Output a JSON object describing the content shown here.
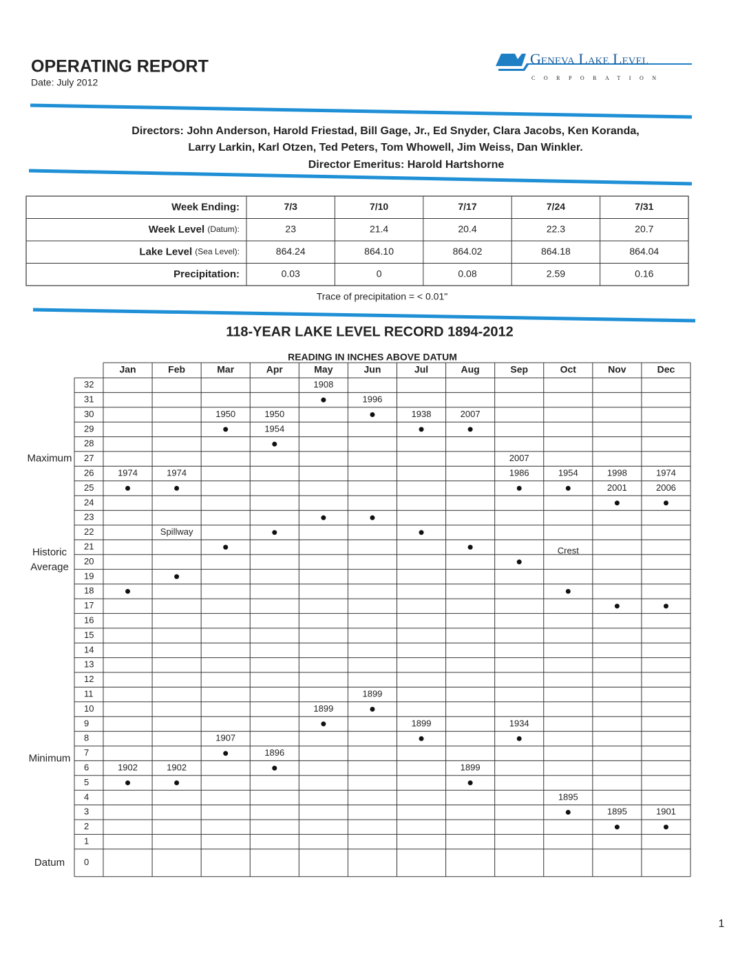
{
  "header": {
    "title": "OPERATING REPORT",
    "date": "Date:  July 2012",
    "logo_name": "Geneva Lake Level",
    "logo_sub": "CORPORATION"
  },
  "directors": {
    "line1": "Directors: John Anderson, Harold Friestad, Bill Gage, Jr., Ed Snyder, Clara Jacobs, Ken Koranda,",
    "line2": "Larry Larkin, Karl Otzen, Ted Peters, Tom Whowell, Jim Weiss, Dan Winkler.",
    "emeritus_label": "Director Emeritus:",
    "emeritus": "Harold Hartshorne"
  },
  "weekly_table": {
    "rows": [
      {
        "label": "Week Ending:",
        "cells": [
          "7/3",
          "7/10",
          "7/17",
          "7/24",
          "7/31"
        ]
      },
      {
        "label": "Week Level",
        "note": "(Datum):",
        "cells": [
          "23",
          "21.4",
          "20.4",
          "22.3",
          "20.7"
        ]
      },
      {
        "label": "Lake Level",
        "note": "(Sea Level):",
        "cells": [
          "864.24",
          "864.10",
          "864.02",
          "864.18",
          "864.04"
        ]
      },
      {
        "label": "Precipitation:",
        "cells": [
          "0.03",
          "0",
          "0.08",
          "2.59",
          "0.16"
        ]
      }
    ],
    "note": "Trace of precipitation = < 0.01\""
  },
  "record": {
    "title": "118-YEAR LAKE LEVEL RECORD 1894-2012",
    "subtitle": "READING IN INCHES ABOVE DATUM",
    "levels": [
      32,
      31,
      30,
      29,
      28,
      27,
      26,
      25,
      24,
      23,
      22,
      21,
      20,
      19,
      18,
      17,
      16,
      15,
      14,
      13,
      12,
      11,
      10,
      9,
      8,
      7,
      6,
      5,
      4,
      3,
      2,
      1,
      0
    ],
    "side_labels": {
      "maximum": "Maximum",
      "average": [
        "Historic",
        "Average"
      ],
      "minimum": "Minimum",
      "datum": "Datum"
    },
    "annotations": {
      "spillway": "Spillway",
      "crest": "Crest"
    },
    "months": [
      {
        "name": "Jan",
        "max": {
          "years": [
            "1974"
          ],
          "level": 25
        },
        "average": 18,
        "min": {
          "years": [
            "1902"
          ],
          "level": 5
        }
      },
      {
        "name": "Feb",
        "max": {
          "years": [
            "1974"
          ],
          "level": 25
        },
        "average": 19,
        "min": {
          "years": [
            "1902"
          ],
          "level": 5
        }
      },
      {
        "name": "Mar",
        "max": {
          "years": [
            "1950"
          ],
          "level": 29
        },
        "average": 21,
        "min": {
          "years": [
            "1907"
          ],
          "level": 7
        }
      },
      {
        "name": "Apr",
        "max": {
          "years": [
            "1950",
            "1954"
          ],
          "level": 28
        },
        "average": 22,
        "min": {
          "years": [
            "1896"
          ],
          "level": 6
        }
      },
      {
        "name": "May",
        "max": {
          "years": [
            "1908"
          ],
          "level": 31
        },
        "average": 23,
        "min": {
          "years": [
            "1899"
          ],
          "level": 9
        }
      },
      {
        "name": "Jun",
        "max": {
          "years": [
            "1996"
          ],
          "level": 30
        },
        "average": 23,
        "min": {
          "years": [
            "1899"
          ],
          "level": 10
        }
      },
      {
        "name": "Jul",
        "max": {
          "years": [
            "1938"
          ],
          "level": 29
        },
        "average": 22,
        "min": {
          "years": [
            "1899"
          ],
          "level": 8
        }
      },
      {
        "name": "Aug",
        "max": {
          "years": [
            "2007"
          ],
          "level": 29
        },
        "average": 21,
        "min": {
          "years": [
            "1899"
          ],
          "level": 5
        }
      },
      {
        "name": "Sep",
        "max": {
          "years": [
            "2007",
            "1986"
          ],
          "level": 25
        },
        "average": 20,
        "min": {
          "years": [
            "1934"
          ],
          "level": 8
        }
      },
      {
        "name": "Oct",
        "max": {
          "years": [
            "1954"
          ],
          "level": 25
        },
        "average": 18,
        "min": {
          "years": [
            "1895"
          ],
          "level": 3
        }
      },
      {
        "name": "Nov",
        "max": {
          "years": [
            "1998",
            "2001"
          ],
          "level": 24
        },
        "average": 17,
        "min": {
          "years": [
            "1895"
          ],
          "level": 2
        }
      },
      {
        "name": "Dec",
        "max": {
          "years": [
            "1974",
            "2006"
          ],
          "level": 24
        },
        "average": 17,
        "min": {
          "years": [
            "1901"
          ],
          "level": 2
        }
      }
    ]
  },
  "page_number": "1"
}
